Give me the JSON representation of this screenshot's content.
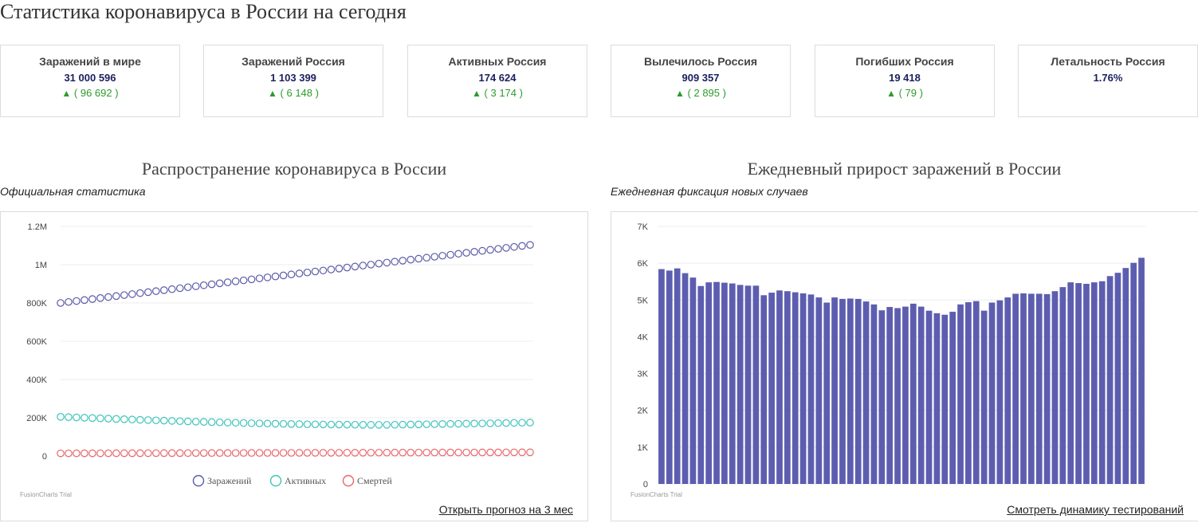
{
  "page": {
    "title": "Статистика коронавируса в России на сегодня"
  },
  "cards": [
    {
      "title": "Заражений в мире",
      "value": "31 000 596",
      "delta": "( 96 692 )"
    },
    {
      "title": "Заражений Россия",
      "value": "1 103 399",
      "delta": "( 6 148 )"
    },
    {
      "title": "Активных Россия",
      "value": "174 624",
      "delta": "( 3 174 )"
    },
    {
      "title": "Вылечилось Россия",
      "value": "909 357",
      "delta": "( 2 895 )"
    },
    {
      "title": "Погибших Россия",
      "value": "19 418",
      "delta": "( 79 )"
    },
    {
      "title": "Летальность Россия",
      "value": "1.76%",
      "delta": ""
    }
  ],
  "delta_arrow": "▲",
  "colors": {
    "infected": "#5b5ba8",
    "active": "#3fc4b9",
    "deaths": "#e8676b",
    "bar": "#5d5db0",
    "delta_up": "#2d9b2d"
  },
  "left_section": {
    "title": "Распространение коронавируса в России",
    "subtitle": "Официальная статистика",
    "link": "Открыть прогноз на 3 мес",
    "trial": "FusionCharts Trial"
  },
  "right_section": {
    "title": "Ежедневный прирост заражений в России",
    "subtitle": "Ежедневная фиксация новых случаев",
    "link": "Смотреть динамику тестирований",
    "trial": "FusionCharts Trial"
  },
  "chart_data": [
    {
      "type": "line",
      "title": "Распространение коронавируса в России",
      "subtitle": "Официальная статистика",
      "ylim": [
        0,
        1200000
      ],
      "y_ticks": [
        "0",
        "200K",
        "400K",
        "600K",
        "800K",
        "1M",
        "1.2M"
      ],
      "y_tick_values": [
        0,
        200000,
        400000,
        600000,
        800000,
        1000000,
        1200000
      ],
      "grid": true,
      "legend_position": "bottom",
      "series": [
        {
          "name": "Заражений",
          "start": 800000,
          "end": 1103399,
          "points": 60
        },
        {
          "name": "Активных",
          "start": 205000,
          "end": 174624,
          "points": 60,
          "min": 163000
        },
        {
          "name": "Смертей",
          "start": 14000,
          "end": 19418,
          "points": 60
        }
      ]
    },
    {
      "type": "bar",
      "title": "Ежедневный прирост заражений в России",
      "subtitle": "Ежедневная фиксация новых случаев",
      "ylim": [
        0,
        7000
      ],
      "y_ticks": [
        "0",
        "1K",
        "2K",
        "3K",
        "4K",
        "5K",
        "6K",
        "7K"
      ],
      "y_tick_values": [
        0,
        1000,
        2000,
        3000,
        4000,
        5000,
        6000,
        7000
      ],
      "grid": true,
      "values": [
        5840,
        5800,
        5860,
        5730,
        5610,
        5380,
        5480,
        5490,
        5470,
        5450,
        5410,
        5390,
        5390,
        5130,
        5200,
        5260,
        5240,
        5210,
        5180,
        5150,
        5070,
        4930,
        5070,
        5030,
        5040,
        5030,
        4960,
        4880,
        4720,
        4810,
        4780,
        4820,
        4900,
        4820,
        4710,
        4640,
        4600,
        4680,
        4880,
        4940,
        4970,
        4710,
        4930,
        4990,
        5070,
        5170,
        5180,
        5170,
        5170,
        5160,
        5240,
        5350,
        5480,
        5460,
        5440,
        5480,
        5510,
        5650,
        5740,
        5870,
        6010,
        6148
      ]
    }
  ]
}
